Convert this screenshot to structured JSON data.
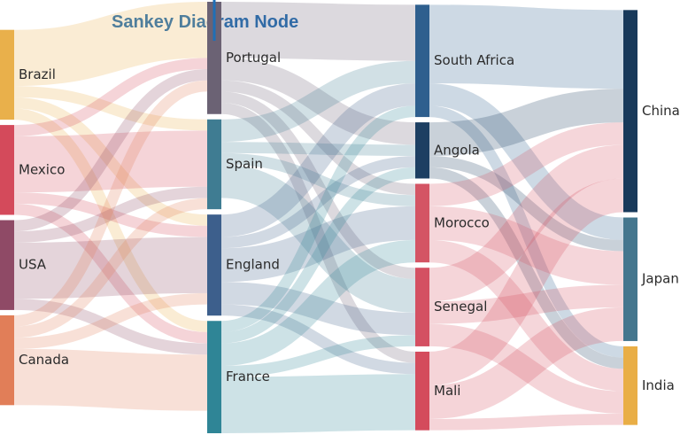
{
  "annotation": {
    "title": "Sankey Diagram Node",
    "arrow_color": "#1f6fb6"
  },
  "columns": [
    [
      "Brazil",
      "Mexico",
      "USA",
      "Canada"
    ],
    [
      "Portugal",
      "Spain",
      "England",
      "France"
    ],
    [
      "South Africa",
      "Angola",
      "Morocco",
      "Senegal",
      "Mali"
    ],
    [
      "China",
      "Japan",
      "India"
    ]
  ],
  "node_colors": {
    "Brazil": "#e9b04b",
    "Mexico": "#d44a5b",
    "USA": "#8f4a66",
    "Canada": "#e17e58",
    "Portugal": "#6b6274",
    "Spain": "#3f7c92",
    "England": "#3d5f8c",
    "France": "#2f8596",
    "South Africa": "#2e5f8e",
    "Angola": "#1d3f62",
    "Morocco": "#d45464",
    "Senegal": "#d45062",
    "Mali": "#d44b5c",
    "China": "#18395a",
    "Japan": "#44768e",
    "India": "#e9ae46"
  },
  "links": [
    [
      "Brazil",
      "Portugal",
      5
    ],
    [
      "Brazil",
      "Spain",
      1
    ],
    [
      "Brazil",
      "England",
      1
    ],
    [
      "Brazil",
      "France",
      1
    ],
    [
      "Mexico",
      "Portugal",
      1
    ],
    [
      "Mexico",
      "Spain",
      5
    ],
    [
      "Mexico",
      "England",
      1
    ],
    [
      "Mexico",
      "France",
      1
    ],
    [
      "USA",
      "Portugal",
      1
    ],
    [
      "USA",
      "Spain",
      1
    ],
    [
      "USA",
      "England",
      5
    ],
    [
      "USA",
      "France",
      1
    ],
    [
      "Canada",
      "Portugal",
      1
    ],
    [
      "Canada",
      "Spain",
      1
    ],
    [
      "Canada",
      "England",
      1
    ],
    [
      "Canada",
      "France",
      5
    ],
    [
      "Portugal",
      "South Africa",
      5
    ],
    [
      "Portugal",
      "Angola",
      2
    ],
    [
      "Portugal",
      "Morocco",
      1
    ],
    [
      "Portugal",
      "Senegal",
      1
    ],
    [
      "Portugal",
      "Mali",
      1
    ],
    [
      "Spain",
      "South Africa",
      2
    ],
    [
      "Spain",
      "Angola",
      1
    ],
    [
      "Spain",
      "Morocco",
      1
    ],
    [
      "Spain",
      "Senegal",
      3
    ],
    [
      "England",
      "South Africa",
      2
    ],
    [
      "England",
      "Angola",
      1
    ],
    [
      "England",
      "Morocco",
      3
    ],
    [
      "England",
      "Senegal",
      2
    ],
    [
      "England",
      "Mali",
      1
    ],
    [
      "France",
      "South Africa",
      1
    ],
    [
      "France",
      "Angola",
      1
    ],
    [
      "France",
      "Morocco",
      2
    ],
    [
      "France",
      "Senegal",
      1
    ],
    [
      "France",
      "Mali",
      5
    ],
    [
      "South Africa",
      "China",
      7
    ],
    [
      "South Africa",
      "Japan",
      2
    ],
    [
      "South Africa",
      "India",
      1
    ],
    [
      "Angola",
      "China",
      3
    ],
    [
      "Angola",
      "Japan",
      1
    ],
    [
      "Angola",
      "India",
      1
    ],
    [
      "Morocco",
      "China",
      2
    ],
    [
      "Morocco",
      "Japan",
      3
    ],
    [
      "Morocco",
      "India",
      2
    ],
    [
      "Senegal",
      "China",
      3
    ],
    [
      "Senegal",
      "Japan",
      2
    ],
    [
      "Senegal",
      "India",
      2
    ],
    [
      "Mali",
      "China",
      3
    ],
    [
      "Mali",
      "Japan",
      3
    ],
    [
      "Mali",
      "India",
      1
    ]
  ]
}
